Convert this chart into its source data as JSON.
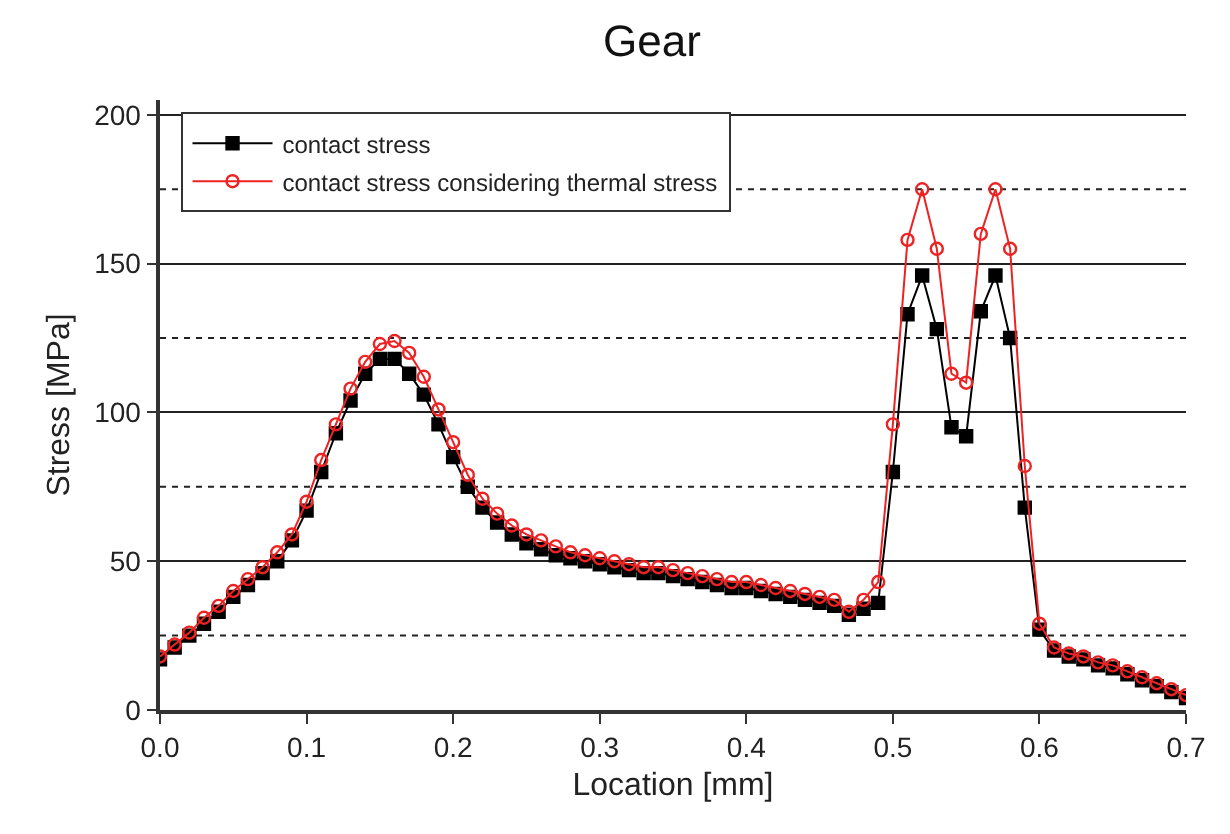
{
  "chart_data": {
    "type": "line",
    "title": "Gear",
    "xlabel": "Location [mm]",
    "ylabel": "Stress [MPa]",
    "x": [
      0.0,
      0.01,
      0.02,
      0.03,
      0.04,
      0.05,
      0.06,
      0.07,
      0.08,
      0.09,
      0.1,
      0.11,
      0.12,
      0.13,
      0.14,
      0.15,
      0.16,
      0.17,
      0.18,
      0.19,
      0.2,
      0.21,
      0.22,
      0.23,
      0.24,
      0.25,
      0.26,
      0.27,
      0.28,
      0.29,
      0.3,
      0.31,
      0.32,
      0.33,
      0.34,
      0.35,
      0.36,
      0.37,
      0.38,
      0.39,
      0.4,
      0.41,
      0.42,
      0.43,
      0.44,
      0.45,
      0.46,
      0.47,
      0.48,
      0.49,
      0.5,
      0.51,
      0.52,
      0.53,
      0.54,
      0.55,
      0.56,
      0.57,
      0.58,
      0.59,
      0.6,
      0.61,
      0.62,
      0.63,
      0.64,
      0.65,
      0.66,
      0.67,
      0.68,
      0.69,
      0.7
    ],
    "series": [
      {
        "name": "contact stress",
        "color": "#000000",
        "marker": "square",
        "values": [
          17,
          21,
          25,
          29,
          33,
          38,
          42,
          46,
          50,
          57,
          67,
          80,
          93,
          104,
          113,
          118,
          118,
          113,
          106,
          96,
          85,
          75,
          68,
          63,
          59,
          56,
          54,
          52,
          51,
          50,
          49,
          48,
          47,
          46,
          46,
          45,
          44,
          43,
          42,
          41,
          41,
          40,
          39,
          38,
          37,
          36,
          35,
          32,
          34,
          36,
          80,
          133,
          146,
          128,
          95,
          92,
          134,
          146,
          125,
          68,
          27,
          20,
          18,
          17,
          15,
          14,
          12,
          10,
          8,
          6,
          4
        ]
      },
      {
        "name": "contact stress considering thermal stress",
        "color": "#ee2222",
        "marker": "circle",
        "values": [
          18,
          22,
          26,
          31,
          35,
          40,
          44,
          48,
          53,
          59,
          70,
          84,
          96,
          108,
          117,
          123,
          124,
          120,
          112,
          101,
          90,
          79,
          71,
          66,
          62,
          59,
          57,
          55,
          53,
          52,
          51,
          50,
          49,
          48,
          48,
          47,
          46,
          45,
          44,
          43,
          43,
          42,
          41,
          40,
          39,
          38,
          37,
          33,
          37,
          43,
          96,
          158,
          175,
          155,
          113,
          110,
          160,
          175,
          155,
          82,
          29,
          21,
          19,
          18,
          16,
          15,
          13,
          11,
          9,
          7,
          5
        ]
      }
    ],
    "xlim": [
      0,
      0.7
    ],
    "xticks": [
      {
        "value": 0,
        "label": "0.0"
      },
      0.1,
      0.2,
      0.3,
      0.4,
      0.5,
      0.6,
      0.7
    ],
    "ylim": [
      0,
      205
    ],
    "yticks": [
      0,
      {
        "value": 25,
        "label": null
      },
      50,
      {
        "value": 75,
        "label": null
      },
      100,
      {
        "value": 125,
        "label": null
      },
      150,
      {
        "value": 175,
        "label": null
      },
      200
    ],
    "grid": "y",
    "legend": "top left"
  }
}
